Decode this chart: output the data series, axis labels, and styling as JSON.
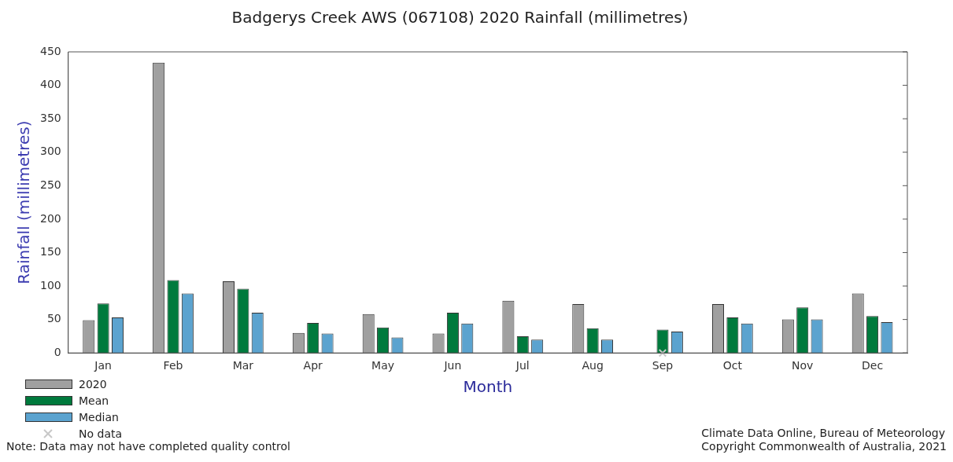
{
  "chart_data": {
    "type": "bar",
    "title": "Badgerys Creek AWS (067108) 2020 Rainfall (millimetres)",
    "xlabel": "Month",
    "ylabel": "Rainfall (millimetres)",
    "categories": [
      "Jan",
      "Feb",
      "Mar",
      "Apr",
      "May",
      "Jun",
      "Jul",
      "Aug",
      "Sep",
      "Oct",
      "Nov",
      "Dec"
    ],
    "series": [
      {
        "name": "2020",
        "color": "#a0a0a0",
        "values": [
          49,
          434,
          107,
          30,
          58,
          29,
          78,
          73,
          null,
          73,
          50,
          89
        ]
      },
      {
        "name": "Mean",
        "color": "#007a3d",
        "values": [
          74,
          109,
          96,
          45,
          38,
          60,
          25,
          37,
          35,
          53,
          68,
          55
        ]
      },
      {
        "name": "Median",
        "color": "#5ba3cf",
        "values": [
          53,
          89,
          60,
          29,
          23,
          44,
          20,
          20,
          32,
          44,
          50,
          46
        ]
      },
      {
        "name": "No data",
        "type": "scatter",
        "color": "#c8c8c8",
        "marker": "cross",
        "x": [
          "Sep"
        ],
        "values": [
          0
        ]
      }
    ],
    "ylim": [
      0,
      450
    ],
    "yticks": [
      0,
      50,
      100,
      150,
      200,
      250,
      300,
      350,
      400,
      450
    ],
    "grid": false,
    "legend": "bottom left",
    "annotations": [
      "Note: Data may not have completed quality control",
      "Climate Data Online, Bureau of Meteorology\nCopyright Commonwealth of Australia, 2021"
    ]
  }
}
